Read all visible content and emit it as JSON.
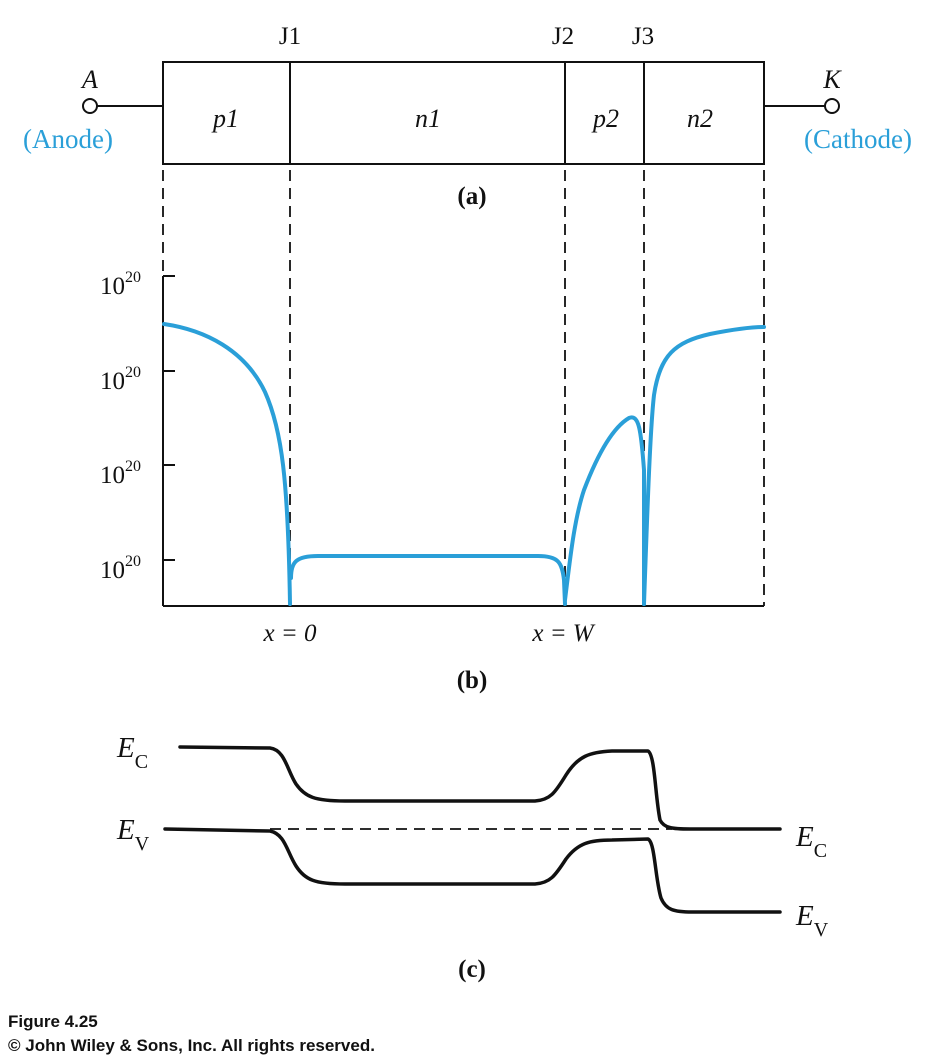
{
  "terminals": {
    "anode_letter": "A",
    "anode_label": "(Anode)",
    "cathode_letter": "K",
    "cathode_label": "(Cathode)"
  },
  "junctions": [
    "J1",
    "J2",
    "J3"
  ],
  "regions": [
    "p1",
    "n1",
    "p2",
    "n2"
  ],
  "panel_labels": {
    "a": "(a)",
    "b": "(b)",
    "c": "(c)"
  },
  "panel_b": {
    "y_tick_labels": [
      "10",
      "10",
      "10",
      "10"
    ],
    "y_tick_exponent": "20",
    "x_labels": [
      "x = 0",
      "x = W"
    ]
  },
  "panel_c": {
    "left_labels": {
      "ec": "E",
      "ec_sub": "C",
      "ev": "E",
      "ev_sub": "V"
    },
    "right_labels": {
      "ec": "E",
      "ec_sub": "C",
      "ev": "E",
      "ev_sub": "V"
    }
  },
  "colors": {
    "accent": "#2a9fd8",
    "ink": "#111111"
  },
  "caption": {
    "figure": "Figure 4.25",
    "copyright": "© John Wiley & Sons, Inc. All rights reserved."
  }
}
